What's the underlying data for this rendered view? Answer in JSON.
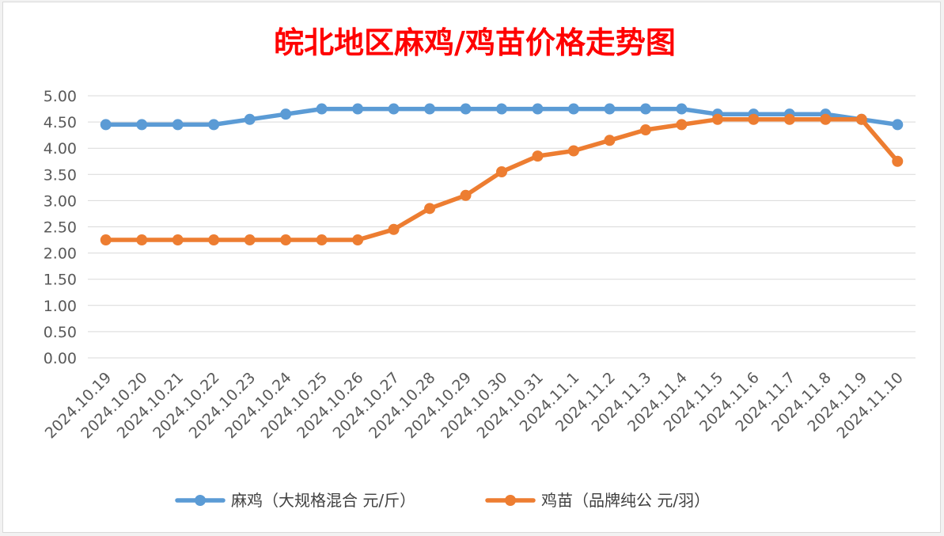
{
  "chart_data": {
    "type": "line",
    "title": "皖北地区麻鸡/鸡苗价格走势图",
    "title_color": "#ff0000",
    "x": [
      "2024.10.19",
      "2024.10.20",
      "2024.10.21",
      "2024.10.22",
      "2024.10.23",
      "2024.10.24",
      "2024.10.25",
      "2024.10.26",
      "2024.10.27",
      "2024.10.28",
      "2024.10.29",
      "2024.10.30",
      "2024.10.31",
      "2024.11.1",
      "2024.11.2",
      "2024.11.3",
      "2024.11.4",
      "2024.11.5",
      "2024.11.6",
      "2024.11.7",
      "2024.11.8",
      "2024.11.9",
      "2024.11.10"
    ],
    "y_ticks": [
      "0.00",
      "0.50",
      "1.00",
      "1.50",
      "2.00",
      "2.50",
      "3.00",
      "3.50",
      "4.00",
      "4.50",
      "5.00"
    ],
    "ylim": [
      0,
      5
    ],
    "grid": true,
    "legend_position": "bottom",
    "series": [
      {
        "name": "麻鸡（大规格混合 元/斤）",
        "color": "#5b9bd5",
        "values": [
          4.45,
          4.45,
          4.45,
          4.45,
          4.55,
          4.65,
          4.75,
          4.75,
          4.75,
          4.75,
          4.75,
          4.75,
          4.75,
          4.75,
          4.75,
          4.75,
          4.75,
          4.65,
          4.65,
          4.65,
          4.65,
          4.55,
          4.45
        ]
      },
      {
        "name": "鸡苗（品牌纯公 元/羽）",
        "color": "#ed7d31",
        "values": [
          2.25,
          2.25,
          2.25,
          2.25,
          2.25,
          2.25,
          2.25,
          2.25,
          2.45,
          2.85,
          3.1,
          3.55,
          3.85,
          3.95,
          4.15,
          4.35,
          4.45,
          4.55,
          4.55,
          4.55,
          4.55,
          4.55,
          3.75
        ]
      }
    ]
  }
}
